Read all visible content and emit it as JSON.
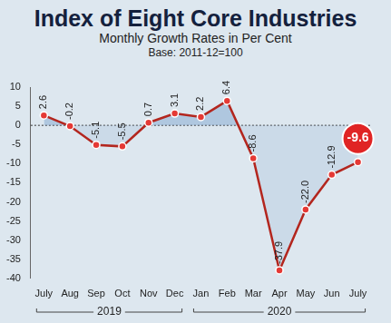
{
  "chart_data": {
    "type": "line",
    "title": "Index of Eight Core Industries",
    "subtitle": "Monthly Growth Rates in Per Cent",
    "annotations": [
      "Base: 2011-12=100"
    ],
    "categories": [
      "July",
      "Aug",
      "Sep",
      "Oct",
      "Nov",
      "Dec",
      "Jan",
      "Feb",
      "Mar",
      "Apr",
      "May",
      "Jun",
      "July"
    ],
    "years": [
      "2019",
      "2019",
      "2019",
      "2019",
      "2019",
      "2019",
      "2020",
      "2020",
      "2020",
      "2020",
      "2020",
      "2020",
      "2020"
    ],
    "values": [
      2.6,
      -0.2,
      -5.1,
      -5.5,
      0.7,
      3.1,
      2.2,
      6.4,
      -8.6,
      -37.9,
      -22.0,
      -12.9,
      -9.6
    ],
    "value_labels": [
      "2.6",
      "-0.2",
      "-5.1",
      "-5.5",
      "0.7",
      "3.1",
      "2.2",
      "6.4",
      "-8.6",
      "-37.9",
      "-22.0",
      "-12.9",
      "-9.6"
    ],
    "color": "#b3261e",
    "marker": "circle",
    "ylim": [
      -40,
      10
    ],
    "yticks": [
      -40,
      -35,
      -30,
      -25,
      -20,
      -15,
      -10,
      -5,
      0,
      5,
      10
    ],
    "grid": false,
    "data_labels": true
  }
}
